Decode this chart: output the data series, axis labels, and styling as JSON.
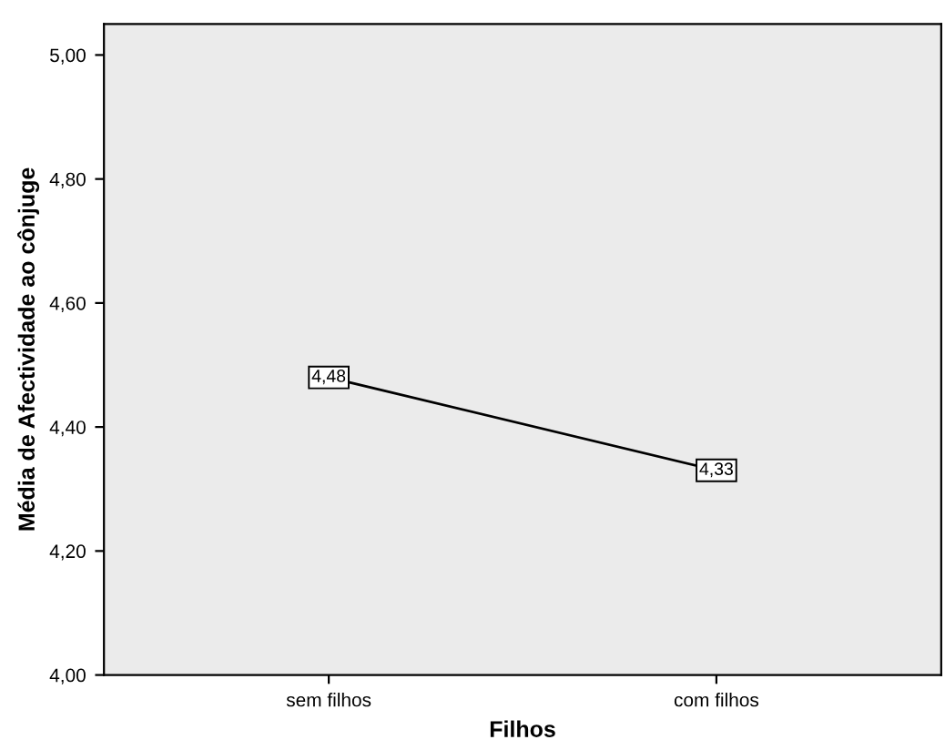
{
  "chart_data": {
    "type": "line",
    "xlabel": "Filhos",
    "ylabel": "Média de Afectividade ao cônjuge",
    "categories": [
      "sem filhos",
      "com filhos"
    ],
    "series": [
      {
        "color": "#000000",
        "values": [
          4.48,
          4.33
        ],
        "value_labels": [
          "4,48",
          "4,33"
        ]
      }
    ],
    "ylim": [
      4.0,
      5.05
    ],
    "yticks": [
      {
        "value": 4.0,
        "label": "4,00"
      },
      {
        "value": 4.2,
        "label": "4,20"
      },
      {
        "value": 4.4,
        "label": "4,40"
      },
      {
        "value": 4.6,
        "label": "4,60"
      },
      {
        "value": 4.8,
        "label": "4,80"
      },
      {
        "value": 5.0,
        "label": "5,00"
      }
    ],
    "marker": "square",
    "line_style": "solid",
    "grid": false,
    "legend": false
  }
}
